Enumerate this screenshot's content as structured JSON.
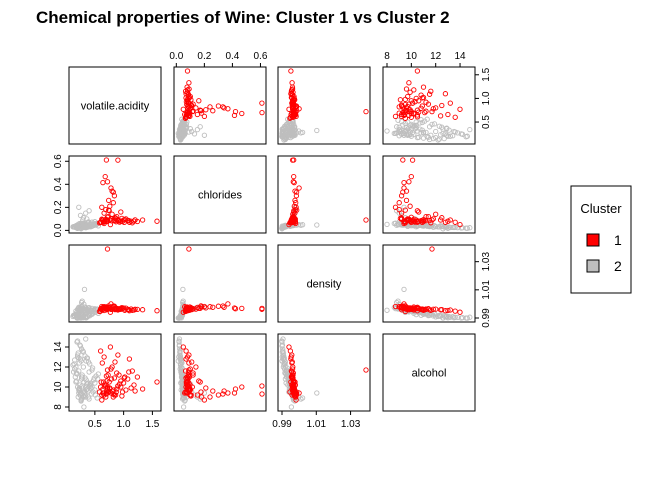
{
  "chart_data": {
    "type": "scatter",
    "title": "Chemical properties of Wine: Cluster 1 vs Cluster 2",
    "variables": [
      {
        "name": "volatile.acidity",
        "range": [
          0.12,
          1.58
        ],
        "ticks": [
          0.5,
          1.0,
          1.5
        ],
        "tick_labels": [
          "0.5",
          "1.0",
          "1.5"
        ]
      },
      {
        "name": "chlorides",
        "range": [
          0.012,
          0.611
        ],
        "ticks": [
          0.0,
          0.2,
          0.4,
          0.6
        ],
        "tick_labels": [
          "0.0",
          "0.2",
          "0.4",
          "0.6"
        ]
      },
      {
        "name": "density",
        "range": [
          0.99,
          1.039
        ],
        "ticks": [
          0.99,
          1.01,
          1.03
        ],
        "tick_labels": [
          "0.99",
          "1.01",
          "1.03"
        ]
      },
      {
        "name": "alcohol",
        "range": [
          8.0,
          14.9
        ],
        "ticks": [
          8,
          10,
          12,
          14
        ],
        "tick_labels": [
          "8",
          "10",
          "12",
          "14"
        ]
      }
    ],
    "series": [
      {
        "name": "1",
        "color": "#ff0000",
        "points": [
          [
            0.66,
            0.06,
            0.998,
            9.4
          ],
          [
            0.7,
            0.076,
            0.9978,
            9.4
          ],
          [
            0.88,
            0.098,
            0.9968,
            9.8
          ],
          [
            0.76,
            0.092,
            0.997,
            9.8
          ],
          [
            0.65,
            0.074,
            0.9978,
            9.4
          ],
          [
            0.6,
            0.069,
            0.9964,
            10.0
          ],
          [
            0.58,
            0.065,
            0.9946,
            9.5
          ],
          [
            0.61,
            0.073,
            0.9968,
            10.5
          ],
          [
            0.62,
            0.097,
            0.9959,
            9.2
          ],
          [
            0.65,
            0.071,
            0.9976,
            10.5
          ],
          [
            0.69,
            0.097,
            0.9978,
            10.2
          ],
          [
            0.7,
            0.089,
            0.9958,
            11.1
          ],
          [
            0.72,
            0.114,
            0.9964,
            10.0
          ],
          [
            0.74,
            0.176,
            0.9986,
            9.5
          ],
          [
            0.75,
            0.17,
            0.9969,
            10.5
          ],
          [
            0.78,
            0.368,
            1.0,
            9.4
          ],
          [
            0.8,
            0.341,
            0.9976,
            9.6
          ],
          [
            0.82,
            0.332,
            0.9985,
            9.3
          ],
          [
            0.84,
            0.082,
            0.9964,
            10.9
          ],
          [
            0.86,
            0.106,
            0.9972,
            9.2
          ],
          [
            0.9,
            0.084,
            0.9966,
            10.1
          ],
          [
            0.92,
            0.085,
            0.9961,
            11.2
          ],
          [
            0.95,
            0.08,
            0.9962,
            10.0
          ],
          [
            0.98,
            0.078,
            0.9967,
            9.5
          ],
          [
            1.0,
            0.09,
            0.9971,
            10.4
          ],
          [
            1.02,
            0.094,
            0.9955,
            11.0
          ],
          [
            1.04,
            0.1,
            0.997,
            9.7
          ],
          [
            1.07,
            0.083,
            0.9962,
            10.8
          ],
          [
            1.09,
            0.086,
            0.9958,
            11.5
          ],
          [
            1.13,
            0.079,
            0.9964,
            9.9
          ],
          [
            1.18,
            0.081,
            0.9957,
            10.2
          ],
          [
            1.24,
            0.077,
            0.9961,
            11.0
          ],
          [
            1.33,
            0.09,
            0.9959,
            9.8
          ],
          [
            1.58,
            0.08,
            0.9952,
            10.5
          ],
          [
            0.64,
            0.415,
            0.9971,
            9.4
          ],
          [
            0.68,
            0.467,
            0.9968,
            10.0
          ],
          [
            0.72,
            0.422,
            0.9966,
            9.8
          ],
          [
            0.7,
            0.611,
            0.9968,
            9.3
          ],
          [
            0.9,
            0.61,
            0.9962,
            10.1
          ],
          [
            0.76,
            0.21,
            0.9972,
            9.9
          ],
          [
            0.82,
            0.24,
            0.998,
            9.0
          ],
          [
            0.74,
            0.26,
            0.9976,
            9.6
          ],
          [
            0.95,
            0.16,
            0.9969,
            10.6
          ],
          [
            0.88,
            0.12,
            0.9966,
            11.4
          ],
          [
            0.8,
            0.14,
            0.9963,
            12.0
          ],
          [
            0.85,
            0.11,
            0.996,
            12.5
          ],
          [
            0.9,
            0.09,
            0.9957,
            13.2
          ],
          [
            1.1,
            0.07,
            0.9952,
            12.8
          ],
          [
            0.66,
            0.15,
            0.9975,
            9.2
          ],
          [
            0.62,
            0.2,
            0.9982,
            8.7
          ],
          [
            0.69,
            0.18,
            0.9979,
            9.0
          ],
          [
            0.73,
            0.12,
            0.9964,
            11.2
          ],
          [
            0.78,
            0.1,
            0.9962,
            11.8
          ],
          [
            0.63,
            0.09,
            0.9958,
            12.4
          ],
          [
            0.66,
            0.08,
            0.9953,
            13.0
          ],
          [
            0.6,
            0.07,
            0.9949,
            13.6
          ],
          [
            0.87,
            0.075,
            0.9968,
            9.5
          ],
          [
            0.93,
            0.072,
            0.9963,
            10.3
          ],
          [
            1.01,
            0.069,
            0.9959,
            10.9
          ],
          [
            1.15,
            0.066,
            0.9955,
            11.6
          ],
          [
            1.2,
            0.091,
            0.9962,
            9.6
          ],
          [
            0.97,
            0.104,
            0.9974,
            9.1
          ],
          [
            0.84,
            0.3,
            0.9984,
            9.2
          ],
          [
            0.77,
            0.05,
            0.9941,
            14.0
          ],
          [
            0.72,
            0.09,
            1.039,
            11.7
          ],
          [
            0.64,
            0.087,
            0.9972,
            9.8
          ],
          [
            0.67,
            0.078,
            0.997,
            10.2
          ],
          [
            0.71,
            0.081,
            0.9966,
            10.6
          ],
          [
            0.79,
            0.083,
            0.9962,
            10.8
          ],
          [
            0.83,
            0.089,
            0.9967,
            9.7
          ]
        ]
      },
      {
        "name": "2",
        "color": "#bebebe",
        "points": [
          [
            0.27,
            0.045,
            1.001,
            8.8
          ],
          [
            0.3,
            0.049,
            0.994,
            9.5
          ],
          [
            0.28,
            0.05,
            0.9951,
            10.1
          ],
          [
            0.23,
            0.058,
            0.9956,
            9.9
          ],
          [
            0.32,
            0.045,
            0.9949,
            9.6
          ],
          [
            0.27,
            0.044,
            0.9938,
            11.0
          ],
          [
            0.3,
            0.033,
            0.9908,
            12.0
          ],
          [
            0.22,
            0.035,
            0.9947,
            9.7
          ],
          [
            0.27,
            0.044,
            0.992,
            10.8
          ],
          [
            0.23,
            0.04,
            0.9912,
            12.4
          ],
          [
            0.18,
            0.039,
            0.9917,
            11.4
          ],
          [
            0.16,
            0.037,
            0.9926,
            11.0
          ],
          [
            0.24,
            0.047,
            0.9962,
            9.2
          ],
          [
            0.43,
            0.032,
            0.9924,
            10.4
          ],
          [
            0.41,
            0.041,
            0.9934,
            10.2
          ],
          [
            0.35,
            0.036,
            0.9901,
            12.6
          ],
          [
            0.25,
            0.033,
            0.9907,
            12.8
          ],
          [
            0.2,
            0.025,
            0.9906,
            13.2
          ],
          [
            0.12,
            0.03,
            0.9911,
            12.2
          ],
          [
            0.15,
            0.028,
            0.9915,
            11.8
          ],
          [
            0.21,
            0.052,
            0.9965,
            9.0
          ],
          [
            0.26,
            0.06,
            0.9975,
            8.6
          ],
          [
            0.33,
            0.065,
            0.9978,
            9.2
          ],
          [
            0.38,
            0.07,
            0.9972,
            9.6
          ],
          [
            0.45,
            0.071,
            0.9968,
            10.0
          ],
          [
            0.5,
            0.075,
            0.9965,
            10.4
          ],
          [
            0.55,
            0.062,
            0.9961,
            10.8
          ],
          [
            0.4,
            0.04,
            0.9935,
            11.5
          ],
          [
            0.36,
            0.03,
            0.9912,
            12.9
          ],
          [
            0.29,
            0.027,
            0.9905,
            13.6
          ],
          [
            0.24,
            0.022,
            0.9903,
            14.2
          ],
          [
            0.19,
            0.02,
            0.99,
            14.5
          ],
          [
            0.31,
            0.046,
            0.9944,
            10.5
          ],
          [
            0.34,
            0.05,
            0.9952,
            10.0
          ],
          [
            0.28,
            0.042,
            0.9932,
            11.2
          ],
          [
            0.22,
            0.038,
            0.9925,
            11.6
          ],
          [
            0.17,
            0.034,
            0.9921,
            12.0
          ],
          [
            0.14,
            0.031,
            0.9918,
            12.3
          ],
          [
            0.26,
            0.055,
            0.9958,
            9.4
          ],
          [
            0.3,
            0.061,
            0.9966,
            9.1
          ],
          [
            0.37,
            0.066,
            0.9962,
            9.8
          ],
          [
            0.42,
            0.058,
            0.9955,
            10.3
          ],
          [
            0.48,
            0.053,
            0.9948,
            10.7
          ],
          [
            0.52,
            0.047,
            0.9942,
            11.1
          ],
          [
            0.46,
            0.041,
            0.9931,
            11.9
          ],
          [
            0.39,
            0.035,
            0.992,
            12.5
          ],
          [
            0.33,
            0.029,
            0.991,
            13.1
          ],
          [
            0.27,
            0.024,
            0.9904,
            13.8
          ],
          [
            0.21,
            0.026,
            0.9909,
            13.4
          ],
          [
            0.15,
            0.029,
            0.9914,
            12.7
          ],
          [
            0.13,
            0.033,
            0.9919,
            11.5
          ],
          [
            0.18,
            0.043,
            0.9937,
            10.6
          ],
          [
            0.24,
            0.048,
            0.9945,
            10.2
          ],
          [
            0.35,
            0.052,
            0.995,
            9.7
          ],
          [
            0.44,
            0.056,
            0.9954,
            9.3
          ],
          [
            0.49,
            0.044,
            0.9939,
            10.9
          ],
          [
            0.56,
            0.039,
            0.9933,
            11.3
          ],
          [
            0.3,
            0.11,
            0.9963,
            9.5
          ],
          [
            0.25,
            0.13,
            0.9968,
            9.2
          ],
          [
            0.34,
            0.15,
            0.9971,
            9.0
          ],
          [
            0.4,
            0.17,
            0.9974,
            8.8
          ],
          [
            0.22,
            0.2,
            0.9976,
            9.4
          ],
          [
            0.29,
            0.09,
            0.996,
            9.9
          ],
          [
            0.36,
            0.1,
            0.9958,
            10.3
          ],
          [
            0.26,
            0.014,
            0.99,
            12.6
          ],
          [
            0.2,
            0.018,
            0.9902,
            13.0
          ],
          [
            0.32,
            0.047,
            1.0103,
            9.4
          ],
          [
            0.28,
            0.049,
            1.002,
            8.9
          ],
          [
            0.31,
            0.05,
            0.9998,
            9.0
          ],
          [
            0.27,
            0.046,
            0.9985,
            9.3
          ],
          [
            0.23,
            0.044,
            0.9972,
            9.6
          ],
          [
            0.2,
            0.041,
            0.9962,
            10.0
          ],
          [
            0.17,
            0.037,
            0.995,
            10.5
          ],
          [
            0.33,
            0.039,
            0.9941,
            10.9
          ],
          [
            0.38,
            0.043,
            0.9946,
            10.4
          ],
          [
            0.43,
            0.048,
            0.9953,
            9.9
          ],
          [
            0.47,
            0.051,
            0.9957,
            9.5
          ],
          [
            0.51,
            0.054,
            0.9961,
            9.2
          ],
          [
            0.54,
            0.057,
            0.9964,
            8.9
          ],
          [
            0.45,
            0.036,
            0.9927,
            11.7
          ],
          [
            0.41,
            0.032,
            0.9916,
            12.3
          ],
          [
            0.37,
            0.028,
            0.9908,
            12.9
          ],
          [
            0.3,
            0.025,
            0.9902,
            13.5
          ],
          [
            0.25,
            0.021,
            0.99,
            14.1
          ],
          [
            0.2,
            0.019,
            0.9899,
            14.6
          ],
          [
            0.34,
            0.023,
            0.9906,
            14.8
          ],
          [
            0.22,
            0.03,
            0.9913,
            12.9
          ],
          [
            0.19,
            0.036,
            0.9923,
            11.3
          ],
          [
            0.28,
            0.04,
            0.993,
            11.0
          ],
          [
            0.35,
            0.045,
            0.9938,
            10.7
          ],
          [
            0.42,
            0.05,
            0.9947,
            10.1
          ],
          [
            0.5,
            0.06,
            0.996,
            9.7
          ],
          [
            0.31,
            0.052,
            0.9955,
            8.0
          ],
          [
            0.23,
            0.045,
            0.9943,
            9.8
          ],
          [
            0.39,
            0.074,
            0.997,
            9.0
          ],
          [
            0.26,
            0.063,
            0.9967,
            8.7
          ]
        ]
      }
    ],
    "legend": {
      "title": "Cluster",
      "entries": [
        "1",
        "2"
      ],
      "position": "right"
    }
  }
}
